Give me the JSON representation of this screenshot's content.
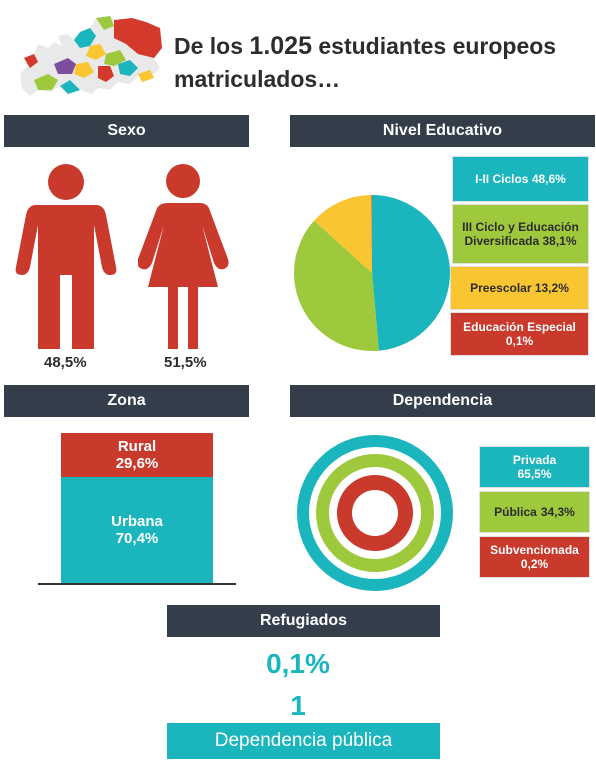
{
  "header": {
    "title_prefix": "De los",
    "title_number": "1.025",
    "title_suffix": "estudiantes europeos matriculados…"
  },
  "sections": {
    "sexo": "Sexo",
    "nivel": "Nivel Educativo",
    "zona": "Zona",
    "dependencia": "Dependencia",
    "refugiados": "Refugiados"
  },
  "colors": {
    "teal": "#1ab5bd",
    "green": "#9ec93c",
    "yellow": "#f9c531",
    "red": "#c9392c",
    "header_bg": "#343e4a"
  },
  "chart_data": [
    {
      "type": "pictograph",
      "section": "Sexo",
      "icons": [
        "male-figure-icon",
        "female-figure-icon"
      ],
      "values": [
        {
          "label": "48,5%",
          "value": 48.5
        },
        {
          "label": "51,5%",
          "value": 51.5
        }
      ]
    },
    {
      "type": "pie",
      "section": "Nivel Educativo",
      "slices": [
        {
          "label": "I-II Ciclos 48,6%",
          "value": 48.6,
          "color": "#1ab5bd"
        },
        {
          "label": "III Ciclo y Educación Diversificada 38,1%",
          "value": 38.1,
          "color": "#9ec93c"
        },
        {
          "label": "Preescolar 13,2%",
          "value": 13.2,
          "color": "#f9c531"
        },
        {
          "label": "Educación Especial 0,1%",
          "value": 0.1,
          "color": "#c9392c"
        }
      ]
    },
    {
      "type": "stacked-bar",
      "section": "Zona",
      "segments": [
        {
          "name": "Rural",
          "label": "29,6%",
          "value": 29.6,
          "color": "#c9392c"
        },
        {
          "name": "Urbana",
          "label": "70,4%",
          "value": 70.4,
          "color": "#1ab5bd"
        }
      ]
    },
    {
      "type": "concentric-rings",
      "section": "Dependencia",
      "rings": [
        {
          "name": "Privada",
          "label": "65,5%",
          "value": 65.5,
          "color": "#1ab5bd"
        },
        {
          "name": "Pública",
          "label": "34,3%",
          "value": 34.3,
          "color": "#9ec93c"
        },
        {
          "name": "Subvencionada",
          "label": "0,2%",
          "value": 0.2,
          "color": "#c9392c"
        }
      ]
    }
  ],
  "refugiados": {
    "percent": "0,1%",
    "count": "1",
    "dependencia": "Dependencia pública"
  }
}
